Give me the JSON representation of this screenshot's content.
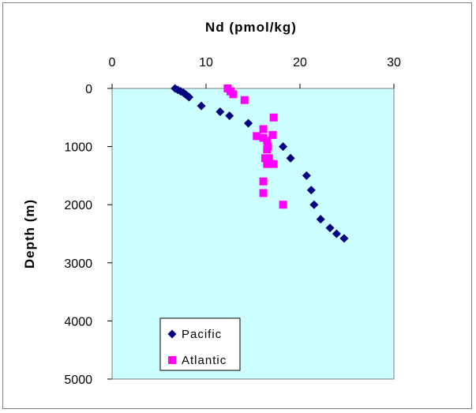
{
  "chart_data": {
    "type": "scatter",
    "title": "Nd (pmol/kg)",
    "xlabel": "Nd (pmol/kg)",
    "ylabel": "Depth (m)",
    "xlim": [
      0,
      30
    ],
    "ylim": [
      0,
      5000
    ],
    "y_inverted": true,
    "x_axis_position": "top",
    "x_ticks": [
      "0",
      "10",
      "20",
      "30"
    ],
    "y_ticks": [
      "0",
      "1000",
      "2000",
      "3000",
      "4000",
      "5000"
    ],
    "plot_background": "#ccffff",
    "legend_position": "bottom-left",
    "series": [
      {
        "name": "Pacific",
        "marker": "diamond",
        "color": "#000080",
        "points": [
          [
            6.7,
            0
          ],
          [
            7.0,
            25
          ],
          [
            7.3,
            50
          ],
          [
            7.6,
            75
          ],
          [
            7.8,
            100
          ],
          [
            8.0,
            125
          ],
          [
            8.2,
            150
          ],
          [
            9.5,
            300
          ],
          [
            11.5,
            400
          ],
          [
            12.5,
            470
          ],
          [
            14.5,
            600
          ],
          [
            18.2,
            1000
          ],
          [
            19.0,
            1200
          ],
          [
            20.7,
            1500
          ],
          [
            21.2,
            1750
          ],
          [
            21.5,
            2000
          ],
          [
            22.2,
            2250
          ],
          [
            23.2,
            2400
          ],
          [
            23.9,
            2500
          ],
          [
            24.7,
            2580
          ]
        ]
      },
      {
        "name": "Atlantic",
        "marker": "square",
        "color": "#ff00ff",
        "points": [
          [
            12.3,
            0
          ],
          [
            12.6,
            50
          ],
          [
            12.9,
            100
          ],
          [
            14.1,
            200
          ],
          [
            17.2,
            500
          ],
          [
            16.1,
            700
          ],
          [
            17.1,
            800
          ],
          [
            15.4,
            820
          ],
          [
            16.1,
            850
          ],
          [
            16.5,
            900
          ],
          [
            16.6,
            1000
          ],
          [
            16.5,
            1050
          ],
          [
            16.3,
            1200
          ],
          [
            16.7,
            1200
          ],
          [
            16.5,
            1300
          ],
          [
            17.2,
            1300
          ],
          [
            16.1,
            1600
          ],
          [
            16.1,
            1800
          ],
          [
            18.2,
            2000
          ]
        ]
      }
    ]
  }
}
